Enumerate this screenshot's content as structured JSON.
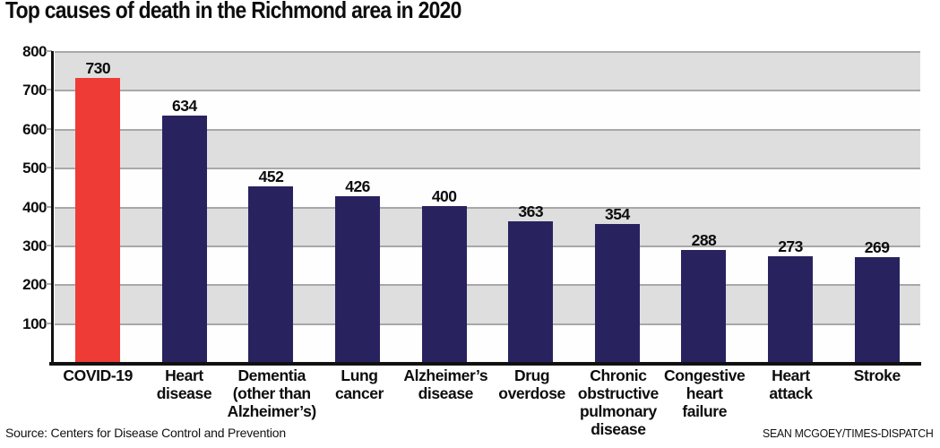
{
  "title": "Top causes of death in the Richmond area in 2020",
  "footer": {
    "source": "Source: Centers for Disease Control and Prevention",
    "credit": "SEAN MCGOEY/TIMES-DISPATCH"
  },
  "colors": {
    "highlight_bar": "#ee3b36",
    "bar": "#28235f",
    "shaded_band": "#dedede",
    "gridline": "#a9a7aa",
    "axis": "#111111"
  },
  "chart_data": {
    "type": "bar",
    "title": "Top causes of death in the Richmond area in 2020",
    "categories": [
      "COVID-19",
      "Heart disease",
      "Dementia (other than Alzheimer’s)",
      "Lung cancer",
      "Alzheimer’s disease",
      "Drug overdose",
      "Chronic obstructive pulmonary disease",
      "Congestive heart failure",
      "Heart attack",
      "Stroke"
    ],
    "category_lines": [
      [
        "COVID-19"
      ],
      [
        "Heart",
        "disease"
      ],
      [
        "Dementia",
        "(other than",
        "Alzheimer’s)"
      ],
      [
        "Lung",
        "cancer"
      ],
      [
        "Alzheimer’s",
        "disease"
      ],
      [
        "Drug",
        "overdose"
      ],
      [
        "Chronic",
        "obstructive",
        "pulmonary",
        "disease"
      ],
      [
        "Congestive",
        "heart",
        "failure"
      ],
      [
        "Heart",
        "attack"
      ],
      [
        "Stroke"
      ]
    ],
    "values": [
      730,
      634,
      452,
      426,
      400,
      363,
      354,
      288,
      273,
      269
    ],
    "highlight_index": 0,
    "xlabel": "",
    "ylabel": "",
    "ylim": [
      0,
      800
    ],
    "yticks": [
      800,
      700,
      600,
      500,
      400,
      300,
      200,
      100
    ],
    "grid": "horizontal gridlines every 100 with alternating shaded bands",
    "legend": "none",
    "data_labels": "value shown above each bar"
  }
}
